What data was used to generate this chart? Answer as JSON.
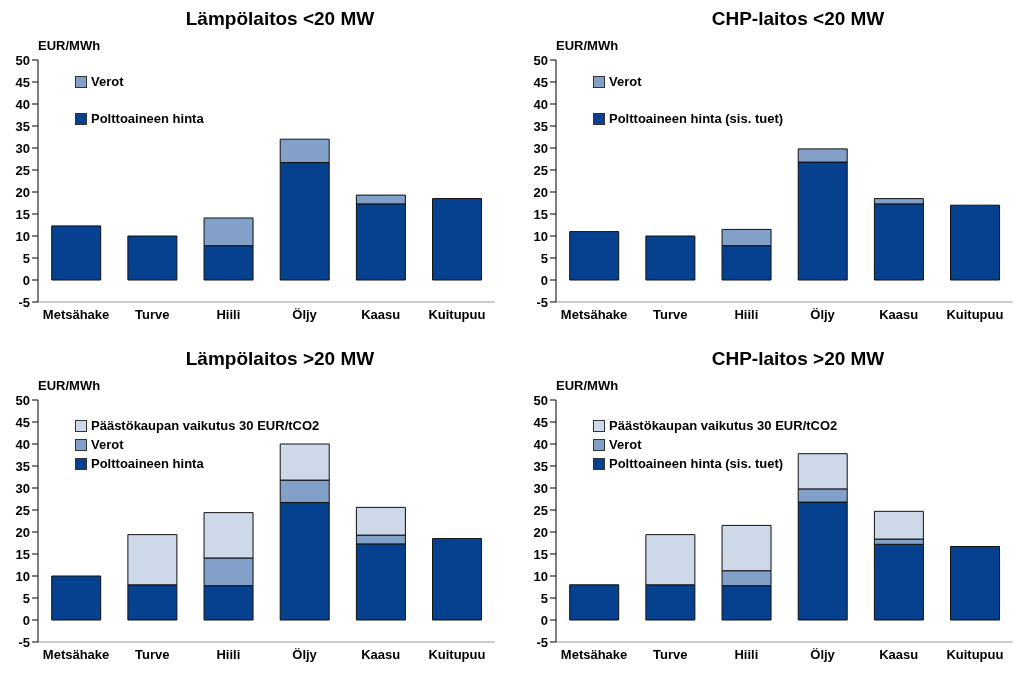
{
  "chart_data": [
    {
      "type": "bar",
      "title": "Lämpölaitos <20 MW",
      "ylabel": "EUR/MWh",
      "categories": [
        "Metsähake",
        "Turve",
        "Hiili",
        "Öljy",
        "Kaasu",
        "Kuitupuu"
      ],
      "stacked": true,
      "ylim": [
        -5,
        50
      ],
      "yticks": [
        -5,
        0,
        5,
        10,
        15,
        20,
        25,
        30,
        35,
        40,
        45,
        50
      ],
      "grid": false,
      "legend": "top left",
      "series": [
        {
          "name": "Polttoaineen hinta",
          "color": "#06418f",
          "values": [
            12.3,
            10,
            7.8,
            26.7,
            17.3,
            18.5
          ]
        },
        {
          "name": "Verot",
          "color": "#82a0c8",
          "values": [
            null,
            null,
            6.3,
            5.3,
            2,
            null
          ]
        }
      ]
    },
    {
      "type": "bar",
      "title": "CHP-laitos <20 MW",
      "ylabel": "EUR/MWh",
      "categories": [
        "Metsähake",
        "Turve",
        "Hiili",
        "Öljy",
        "Kaasu",
        "Kuitupuu"
      ],
      "stacked": true,
      "ylim": [
        -5,
        50
      ],
      "yticks": [
        -5,
        0,
        5,
        10,
        15,
        20,
        25,
        30,
        35,
        40,
        45,
        50
      ],
      "grid": false,
      "legend": "top left",
      "series": [
        {
          "name": "Polttoaineen hinta (sis. tuet)",
          "color": "#06418f",
          "values": [
            11,
            10,
            7.8,
            26.8,
            17.3,
            17
          ]
        },
        {
          "name": "Verot",
          "color": "#82a0c8",
          "values": [
            null,
            null,
            3.7,
            3,
            1.2,
            null
          ]
        }
      ]
    },
    {
      "type": "bar",
      "title": "Lämpölaitos >20 MW",
      "ylabel": "EUR/MWh",
      "categories": [
        "Metsähake",
        "Turve",
        "Hiili",
        "Öljy",
        "Kaasu",
        "Kuitupuu"
      ],
      "stacked": true,
      "ylim": [
        -5,
        50
      ],
      "yticks": [
        -5,
        0,
        5,
        10,
        15,
        20,
        25,
        30,
        35,
        40,
        45,
        50
      ],
      "grid": false,
      "legend": "top left",
      "series": [
        {
          "name": "Polttoaineen hinta",
          "color": "#06418f",
          "values": [
            10,
            8,
            7.8,
            26.7,
            17.3,
            18.5
          ]
        },
        {
          "name": "Verot",
          "color": "#82a0c8",
          "values": [
            null,
            null,
            6.3,
            5.1,
            2,
            null
          ]
        },
        {
          "name": "Päästökaupan vaikutus 30 EUR/tCO2",
          "color": "#cdd8e8",
          "values": [
            null,
            11.4,
            10.3,
            8.2,
            6.3,
            null
          ]
        }
      ]
    },
    {
      "type": "bar",
      "title": "CHP-laitos >20 MW",
      "ylabel": "EUR/MWh",
      "categories": [
        "Metsähake",
        "Turve",
        "Hiili",
        "Öljy",
        "Kaasu",
        "Kuitupuu"
      ],
      "stacked": true,
      "ylim": [
        -5,
        50
      ],
      "yticks": [
        -5,
        0,
        5,
        10,
        15,
        20,
        25,
        30,
        35,
        40,
        45,
        50
      ],
      "grid": false,
      "legend": "top left",
      "series": [
        {
          "name": "Polttoaineen hinta (sis. tuet)",
          "color": "#06418f",
          "values": [
            8,
            8,
            7.8,
            26.8,
            17.2,
            16.7
          ]
        },
        {
          "name": "Verot",
          "color": "#82a0c8",
          "values": [
            null,
            null,
            3.4,
            3,
            1.2,
            null
          ]
        },
        {
          "name": "Päästökaupan vaikutus 30 EUR/tCO2",
          "color": "#cdd8e8",
          "values": [
            null,
            11.4,
            10.3,
            8,
            6.3,
            null
          ]
        }
      ]
    }
  ]
}
